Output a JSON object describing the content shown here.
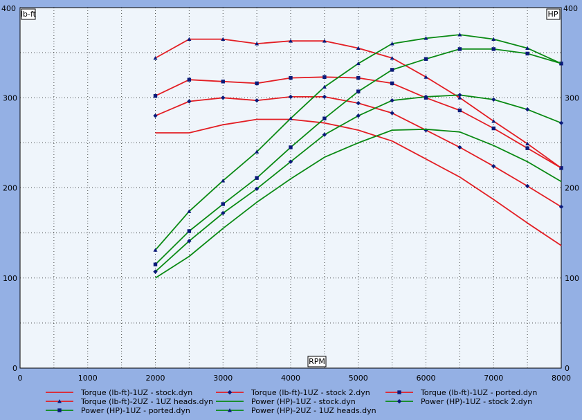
{
  "chart_data": {
    "type": "line",
    "xlabel": "RPM",
    "ylabel_left": "lb-ft",
    "ylabel_right": "HP",
    "xlim": [
      0,
      8000
    ],
    "ylim": [
      0,
      400
    ],
    "x_ticks": [
      "0",
      "1000",
      "2000",
      "3000",
      "4000",
      "5000",
      "6000",
      "7000",
      "8000"
    ],
    "y_ticks": [
      "0",
      "100",
      "200",
      "300",
      "400"
    ],
    "grid": true,
    "legend_position": "bottom",
    "x": [
      2000,
      2500,
      3000,
      3500,
      4000,
      4500,
      5000,
      5500,
      6000,
      6500,
      7000,
      7500,
      8000
    ],
    "series": [
      {
        "name": "Torque (lb-ft)-1UZ - stock.dyn",
        "color": "#e31e24",
        "marker": "none",
        "values": [
          261,
          261,
          270,
          276,
          276,
          272,
          264,
          252,
          232,
          212,
          187,
          161,
          136
        ]
      },
      {
        "name": "Torque (lb-ft)-1UZ - stock 2.dyn",
        "color": "#e31e24",
        "marker": "diamond",
        "values": [
          280,
          296,
          300,
          297,
          301,
          301,
          294,
          283,
          264,
          245,
          224,
          202,
          179
        ]
      },
      {
        "name": "Torque (lb-ft)-1UZ - ported.dyn",
        "color": "#e31e24",
        "marker": "square",
        "values": [
          302,
          320,
          318,
          316,
          322,
          323,
          322,
          316,
          300,
          286,
          266,
          244,
          222
        ]
      },
      {
        "name": "Torque (lb-ft)-2UZ - 1UZ heads.dyn",
        "color": "#e31e24",
        "marker": "triangle",
        "values": [
          344,
          365,
          365,
          360,
          363,
          363,
          355,
          344,
          323,
          300,
          274,
          249,
          222
        ]
      },
      {
        "name": "Power (HP)-1UZ - stock.dyn",
        "color": "#0a8a14",
        "marker": "none",
        "values": [
          100,
          124,
          155,
          184,
          210,
          234,
          250,
          264,
          265,
          262,
          247,
          229,
          207
        ]
      },
      {
        "name": "Power (HP)-1UZ - stock 2.dyn",
        "color": "#0a8a14",
        "marker": "diamond",
        "values": [
          107,
          141,
          172,
          199,
          229,
          259,
          280,
          297,
          301,
          303,
          298,
          287,
          272
        ]
      },
      {
        "name": "Power (HP)-1UZ - ported.dyn",
        "color": "#0a8a14",
        "marker": "square",
        "values": [
          115,
          152,
          182,
          211,
          245,
          277,
          307,
          331,
          343,
          354,
          354,
          349,
          338
        ]
      },
      {
        "name": "Power (HP)-2UZ - 1UZ heads.dyn",
        "color": "#0a8a14",
        "marker": "triangle",
        "values": [
          131,
          174,
          208,
          240,
          277,
          312,
          338,
          360,
          366,
          370,
          365,
          355,
          338
        ]
      }
    ]
  },
  "colors": {
    "background": "#94b0e4",
    "plot": "#eff5fb",
    "marker_fill": "#0a1a7a"
  }
}
